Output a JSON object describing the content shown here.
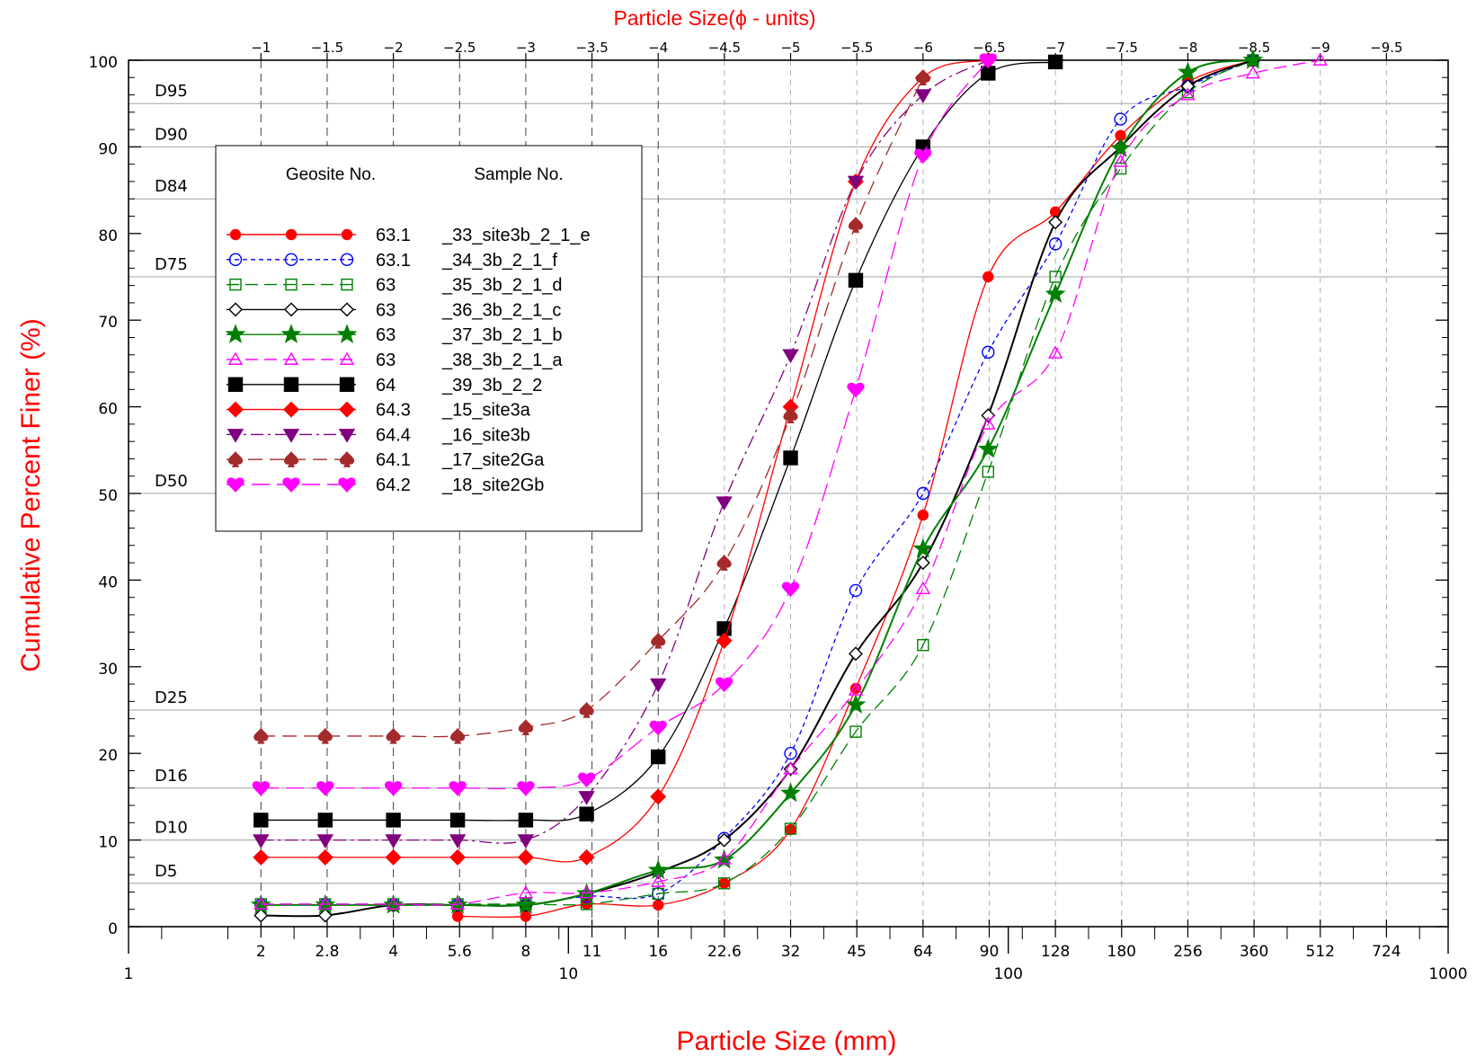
{
  "chart_data": {
    "type": "line",
    "title": "Particle Size(ϕ - units)",
    "xlabel": "Particle Size  (mm)",
    "ylabel": "Cumulative Percent Finer (%)",
    "x_scale": "log",
    "xlim": [
      1,
      1000
    ],
    "ylim": [
      0,
      100
    ],
    "grid": false,
    "legend_position": "upper-left",
    "x_major_ticks": [
      "1",
      "10",
      "100",
      "1000"
    ],
    "x_bottom_ticks": [
      "2",
      "2.8",
      "4",
      "5.6",
      "8",
      "11",
      "16",
      "22.6",
      "32",
      "45",
      "64",
      "90",
      "128",
      "180",
      "256",
      "360",
      "512",
      "724"
    ],
    "x_top_axis_label": "Particle Size(ϕ - units)",
    "x_top_ticks": [
      "−1",
      "−1.5",
      "−2",
      "−2.5",
      "−3",
      "−3.5",
      "−4",
      "−4.5",
      "−5",
      "−5.5",
      "−6",
      "−6.5",
      "−7",
      "−7.5",
      "−8",
      "−8.5",
      "−9",
      "−9.5"
    ],
    "y_ticks": [
      "0",
      "10",
      "20",
      "30",
      "40",
      "50",
      "60",
      "70",
      "80",
      "90",
      "100"
    ],
    "reference_lines": [
      {
        "label": "D5",
        "value": 5
      },
      {
        "label": "D10",
        "value": 10
      },
      {
        "label": "D16",
        "value": 16
      },
      {
        "label": "D25",
        "value": 25
      },
      {
        "label": "D50",
        "value": 50
      },
      {
        "label": "D75",
        "value": 75
      },
      {
        "label": "D84",
        "value": 84
      },
      {
        "label": "D90",
        "value": 90
      },
      {
        "label": "D95",
        "value": 95
      }
    ],
    "legend_headers": {
      "geosite": "Geosite No.",
      "sample": "Sample No."
    },
    "series": [
      {
        "geosite": "63.1",
        "name": "_33_site3b_2_1_e",
        "color": "#ff0000",
        "marker": "circle",
        "dash": "",
        "x": [
          5.6,
          8,
          11,
          16,
          22.6,
          32,
          45,
          64,
          90,
          128,
          180,
          256,
          360
        ],
        "values": [
          1.2,
          1.2,
          2.6,
          2.5,
          5,
          11.2,
          27.5,
          47.5,
          75,
          82.5,
          91.3,
          97.5,
          100
        ]
      },
      {
        "geosite": "63.1",
        "name": "_34_3b_2_1_f",
        "color": "#0000ff",
        "marker": "circle-open",
        "dash": "5,4",
        "x": [
          2,
          2.8,
          4,
          5.6,
          8,
          11,
          16,
          22.6,
          32,
          45,
          64,
          90,
          128,
          180,
          256,
          360
        ],
        "values": [
          2.5,
          2.5,
          2.5,
          2.5,
          2.5,
          3.5,
          3.8,
          10.2,
          20,
          38.8,
          50,
          66.3,
          78.8,
          93.2,
          97,
          100
        ]
      },
      {
        "geosite": "63",
        "name": "_35_3b_2_1_d",
        "color": "#008000",
        "marker": "square-open",
        "dash": "14,7",
        "x": [
          2,
          2.8,
          4,
          5.6,
          8,
          11,
          16,
          22.6,
          32,
          45,
          64,
          90,
          128,
          180,
          256,
          360
        ],
        "values": [
          2.6,
          2.6,
          2.6,
          2.6,
          2.6,
          2.6,
          3.8,
          5,
          11.3,
          22.5,
          32.5,
          52.5,
          75,
          87.5,
          96.3,
          100
        ]
      },
      {
        "geosite": "63",
        "name": "_36_3b_2_1_c",
        "color": "#000000",
        "marker": "diamond-open",
        "dash": "",
        "x": [
          2,
          2.8,
          4,
          5.6,
          8,
          11,
          16,
          22.6,
          32,
          45,
          64,
          90,
          128,
          180,
          256,
          360
        ],
        "values": [
          1.3,
          1.3,
          2.5,
          2.5,
          2.5,
          3.8,
          6.3,
          10,
          18.2,
          31.5,
          42,
          59,
          81.3,
          90,
          97,
          100
        ]
      },
      {
        "geosite": "63",
        "name": "_37_3b_2_1_b",
        "color": "#008000",
        "marker": "star",
        "dash": "",
        "x": [
          2,
          2.8,
          4,
          5.6,
          8,
          11,
          16,
          22.6,
          32,
          45,
          64,
          90,
          128,
          180,
          256,
          360
        ],
        "values": [
          2.5,
          2.5,
          2.5,
          2.5,
          2.5,
          3.8,
          6.5,
          7.7,
          15.4,
          25.6,
          43.6,
          55.1,
          73,
          89.8,
          98.6,
          100
        ]
      },
      {
        "geosite": "63",
        "name": "_38_3b_2_1_a",
        "color": "#ff00ff",
        "marker": "triangle-open",
        "dash": "14,7",
        "x": [
          2,
          2.8,
          4,
          5.6,
          8,
          11,
          16,
          22.6,
          32,
          45,
          64,
          90,
          128,
          180,
          256,
          360,
          512
        ],
        "values": [
          2.6,
          2.6,
          2.6,
          2.6,
          3.9,
          3.9,
          5.2,
          7.8,
          18.2,
          27.3,
          39,
          58,
          66.2,
          88.3,
          96,
          98.5,
          100
        ]
      },
      {
        "geosite": "64",
        "name": "_39_3b_2_2",
        "color": "#000000",
        "marker": "square",
        "dash": "",
        "x": [
          2,
          2.8,
          4,
          5.6,
          8,
          11,
          16,
          22.6,
          32,
          45,
          64,
          90,
          128
        ],
        "values": [
          12.3,
          12.3,
          12.3,
          12.3,
          12.3,
          13,
          19.6,
          34.4,
          54.1,
          74.6,
          90,
          98.5,
          99.8
        ]
      },
      {
        "geosite": "64.3",
        "name": "_15_site3a",
        "color": "#ff0000",
        "marker": "diamond",
        "dash": "",
        "x": [
          2,
          2.8,
          4,
          5.6,
          8,
          11,
          16,
          22.6,
          32,
          45,
          64,
          90
        ],
        "values": [
          8,
          8,
          8,
          8,
          8,
          8,
          15,
          33,
          60,
          86,
          98,
          100
        ]
      },
      {
        "geosite": "64.4",
        "name": "_16_site3b",
        "color": "#800080",
        "marker": "triangle-down",
        "dash": "14,5,3,5",
        "x": [
          2,
          2.8,
          4,
          5.6,
          8,
          11,
          16,
          22.6,
          32,
          45,
          64,
          90
        ],
        "values": [
          10,
          10,
          10,
          10,
          10,
          15,
          28,
          49,
          66,
          86,
          96,
          100
        ]
      },
      {
        "geosite": "64.1",
        "name": "_17_site2Ga",
        "color": "#a52a2a",
        "marker": "spade",
        "dash": "16,8",
        "x": [
          2,
          2.8,
          4,
          5.6,
          8,
          11,
          16,
          22.6,
          32,
          45,
          64
        ],
        "values": [
          22,
          22,
          22,
          22,
          23,
          25,
          33,
          42,
          59,
          81,
          98
        ]
      },
      {
        "geosite": "64.2",
        "name": "_18_site2Gb",
        "color": "#ff00ff",
        "marker": "heart",
        "dash": "20,8",
        "x": [
          2,
          2.8,
          4,
          5.6,
          8,
          11,
          16,
          22.6,
          32,
          45,
          64,
          90
        ],
        "values": [
          16,
          16,
          16,
          16,
          16,
          17,
          23,
          28,
          39,
          62,
          89,
          100
        ]
      }
    ]
  }
}
